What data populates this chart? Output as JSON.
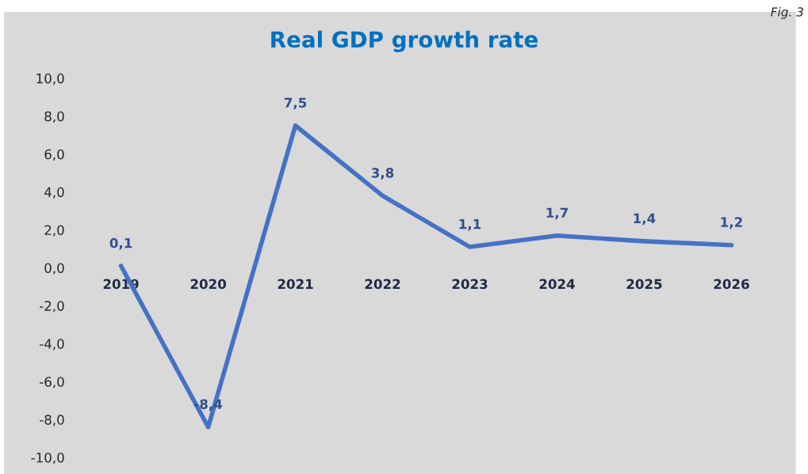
{
  "chart_data": {
    "type": "line",
    "title": "Real GDP growth rate",
    "categories": [
      "2019",
      "2020",
      "2021",
      "2022",
      "2023",
      "2024",
      "2025",
      "2026"
    ],
    "series": [
      {
        "color": "#4472c4",
        "values": [
          0.1,
          -8.4,
          7.5,
          3.8,
          1.1,
          1.7,
          1.4,
          1.2
        ],
        "value_labels": [
          "0,1",
          "-8,4",
          "7,5",
          "3,8",
          "1,1",
          "1,7",
          "1,4",
          "1,2"
        ]
      }
    ],
    "ylim": [
      -10,
      10
    ],
    "yticks": [
      {
        "value": -10,
        "label": "-10,0"
      },
      {
        "value": -8,
        "label": "-8,0"
      },
      {
        "value": -6,
        "label": "-6,0"
      },
      {
        "value": -4,
        "label": "-4,0"
      },
      {
        "value": -2,
        "label": "-2,0"
      },
      {
        "value": 0,
        "label": "0,0"
      },
      {
        "value": 2,
        "label": "2,0"
      },
      {
        "value": 4,
        "label": "4,0"
      },
      {
        "value": 6,
        "label": "6,0"
      },
      {
        "value": 8,
        "label": "8,0"
      },
      {
        "value": 10,
        "label": "10,0"
      }
    ],
    "grid": false,
    "marker": "none",
    "line_style": "solid",
    "annotations": [
      "Fig. 3"
    ]
  }
}
